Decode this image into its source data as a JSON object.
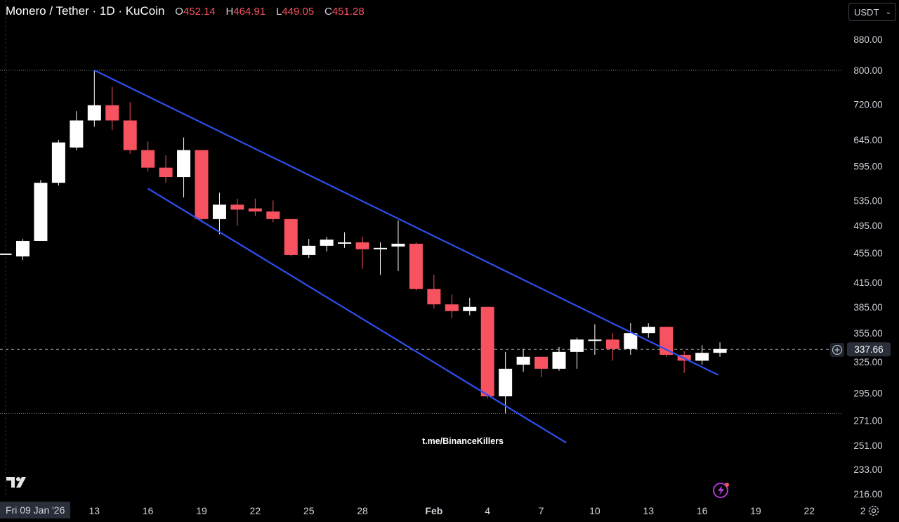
{
  "header": {
    "symbol": "Monero / Tether · 1D · KuCoin",
    "open_label": "O",
    "open": "452.14",
    "high_label": "H",
    "high": "464.91",
    "low_label": "L",
    "low": "449.05",
    "close_label": "C",
    "close": "451.28"
  },
  "currency": {
    "label": "USDT"
  },
  "crosshair_date": "Fri 09 Jan '26",
  "watermark": "t.me/BinanceKillers",
  "icons": {
    "logo": "tradingview-logo-icon",
    "flash": "flash-icon",
    "settings": "gear-icon",
    "add": "plus-circle-icon"
  },
  "colors": {
    "up": "#ffffff",
    "down": "#f7525f",
    "channel": "#2f4ff0",
    "background": "#000000",
    "text": "#d1d4dc"
  },
  "chart_data": {
    "type": "candlestick",
    "title": "Monero / Tether · 1D · KuCoin",
    "ylim": [
      200,
      920
    ],
    "y_scale": "log",
    "x_ticks": [
      "13",
      "16",
      "19",
      "22",
      "25",
      "28",
      "Feb",
      "4",
      "7",
      "10",
      "13",
      "16",
      "19",
      "22",
      "2"
    ],
    "x_tick_index": [
      4,
      7,
      10,
      13,
      16,
      19,
      23,
      26,
      29,
      32,
      35,
      38,
      41,
      44,
      47
    ],
    "y_ticks": [
      "880.00",
      "800.00",
      "720.00",
      "645.00",
      "595.00",
      "535.00",
      "495.00",
      "455.00",
      "415.00",
      "385.00",
      "355.00",
      "325.00",
      "295.00",
      "271.00",
      "251.00",
      "233.00",
      "216.00"
    ],
    "y_tick_values": [
      880,
      800,
      720,
      645,
      595,
      535,
      495,
      455,
      415,
      385,
      355,
      325,
      295,
      271,
      251,
      233,
      216
    ],
    "last_price": "337.66",
    "last_price_value": 337.66,
    "reference_lines": [
      800,
      277
    ],
    "candles": [
      {
        "i": -1,
        "o": 454,
        "h": 454,
        "l": 454,
        "c": 454
      },
      {
        "i": 0,
        "o": 450,
        "h": 475,
        "l": 445,
        "c": 472
      },
      {
        "i": 1,
        "o": 472,
        "h": 570,
        "l": 472,
        "c": 565
      },
      {
        "i": 2,
        "o": 565,
        "h": 645,
        "l": 560,
        "c": 640
      },
      {
        "i": 3,
        "o": 630,
        "h": 705,
        "l": 625,
        "c": 685
      },
      {
        "i": 4,
        "o": 685,
        "h": 800,
        "l": 672,
        "c": 718
      },
      {
        "i": 5,
        "o": 718,
        "h": 760,
        "l": 665,
        "c": 685
      },
      {
        "i": 6,
        "o": 685,
        "h": 725,
        "l": 618,
        "c": 625
      },
      {
        "i": 7,
        "o": 625,
        "h": 642,
        "l": 585,
        "c": 592
      },
      {
        "i": 8,
        "o": 592,
        "h": 615,
        "l": 565,
        "c": 575
      },
      {
        "i": 9,
        "o": 575,
        "h": 650,
        "l": 540,
        "c": 625
      },
      {
        "i": 10,
        "o": 625,
        "h": 625,
        "l": 500,
        "c": 505
      },
      {
        "i": 11,
        "o": 505,
        "h": 548,
        "l": 482,
        "c": 528
      },
      {
        "i": 12,
        "o": 528,
        "h": 538,
        "l": 495,
        "c": 520
      },
      {
        "i": 13,
        "o": 522,
        "h": 538,
        "l": 510,
        "c": 517
      },
      {
        "i": 14,
        "o": 517,
        "h": 535,
        "l": 500,
        "c": 505
      },
      {
        "i": 15,
        "o": 505,
        "h": 505,
        "l": 450,
        "c": 452
      },
      {
        "i": 16,
        "o": 452,
        "h": 475,
        "l": 448,
        "c": 465
      },
      {
        "i": 17,
        "o": 465,
        "h": 478,
        "l": 457,
        "c": 474
      },
      {
        "i": 18,
        "o": 470,
        "h": 485,
        "l": 462,
        "c": 470
      },
      {
        "i": 19,
        "o": 470,
        "h": 478,
        "l": 433,
        "c": 460
      },
      {
        "i": 20,
        "o": 460,
        "h": 470,
        "l": 425,
        "c": 462
      },
      {
        "i": 21,
        "o": 464,
        "h": 503,
        "l": 430,
        "c": 468
      },
      {
        "i": 22,
        "o": 468,
        "h": 470,
        "l": 405,
        "c": 407
      },
      {
        "i": 23,
        "o": 407,
        "h": 425,
        "l": 383,
        "c": 388
      },
      {
        "i": 24,
        "o": 388,
        "h": 400,
        "l": 372,
        "c": 380
      },
      {
        "i": 25,
        "o": 380,
        "h": 396,
        "l": 375,
        "c": 385
      },
      {
        "i": 26,
        "o": 385,
        "h": 385,
        "l": 290,
        "c": 292
      },
      {
        "i": 27,
        "o": 292,
        "h": 335,
        "l": 277,
        "c": 318
      },
      {
        "i": 28,
        "o": 322,
        "h": 338,
        "l": 315,
        "c": 330
      },
      {
        "i": 29,
        "o": 330,
        "h": 330,
        "l": 310,
        "c": 318
      },
      {
        "i": 30,
        "o": 318,
        "h": 340,
        "l": 316,
        "c": 335
      },
      {
        "i": 31,
        "o": 335,
        "h": 350,
        "l": 318,
        "c": 348
      },
      {
        "i": 32,
        "o": 348,
        "h": 365,
        "l": 332,
        "c": 348
      },
      {
        "i": 33,
        "o": 348,
        "h": 355,
        "l": 326,
        "c": 338
      },
      {
        "i": 34,
        "o": 338,
        "h": 366,
        "l": 332,
        "c": 355
      },
      {
        "i": 35,
        "o": 355,
        "h": 366,
        "l": 350,
        "c": 362
      },
      {
        "i": 36,
        "o": 362,
        "h": 362,
        "l": 330,
        "c": 332
      },
      {
        "i": 37,
        "o": 332,
        "h": 336,
        "l": 314,
        "c": 326
      },
      {
        "i": 38,
        "o": 326,
        "h": 342,
        "l": 322,
        "c": 334
      },
      {
        "i": 39,
        "o": 334,
        "h": 345,
        "l": 330,
        "c": 338
      }
    ],
    "channel_lines": [
      {
        "name": "upper",
        "from": {
          "i": 4,
          "v": 800
        },
        "to": {
          "i": 38.9,
          "v": 312
        }
      },
      {
        "name": "lower",
        "from": {
          "i": 7,
          "v": 555
        },
        "to": {
          "i": 30.4,
          "v": 253
        }
      }
    ]
  }
}
